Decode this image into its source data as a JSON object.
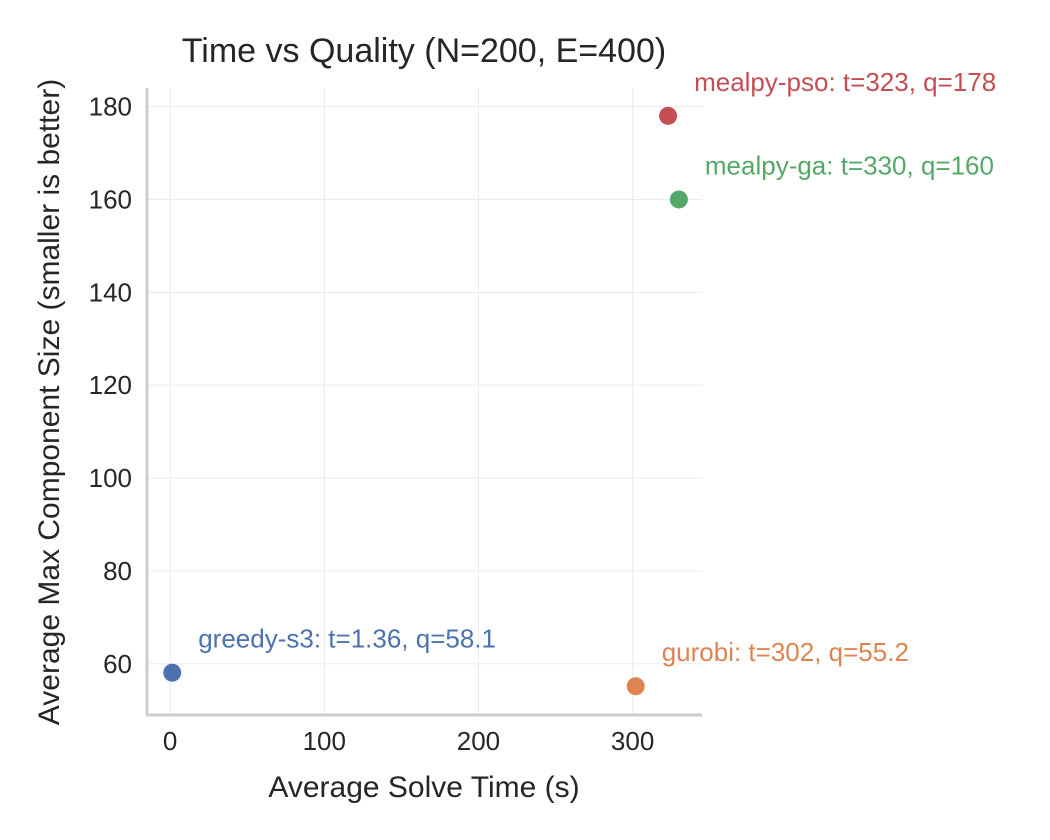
{
  "chart_data": {
    "type": "scatter",
    "title": "Time vs Quality (N=200, E=400)",
    "xlabel": "Average Solve Time (s)",
    "ylabel": "Average Max Component Size (smaller is better)",
    "xlim": [
      -15,
      345
    ],
    "ylim": [
      49,
      184
    ],
    "xticks": [
      0,
      100,
      200,
      300
    ],
    "yticks": [
      60,
      80,
      100,
      120,
      140,
      160,
      180
    ],
    "grid": true,
    "points": [
      {
        "x": 1.36,
        "y": 58.1,
        "label": "greedy-s3: t=1.36, q=58.1",
        "color": "#4c72b0"
      },
      {
        "x": 302,
        "y": 55.2,
        "label": "gurobi: t=302, q=55.2",
        "color": "#dd8452"
      },
      {
        "x": 330,
        "y": 160,
        "label": "mealpy-ga: t=330, q=160",
        "color": "#55a868"
      },
      {
        "x": 323,
        "y": 178,
        "label": "mealpy-pso: t=323, q=178",
        "color": "#c44e52"
      }
    ]
  }
}
